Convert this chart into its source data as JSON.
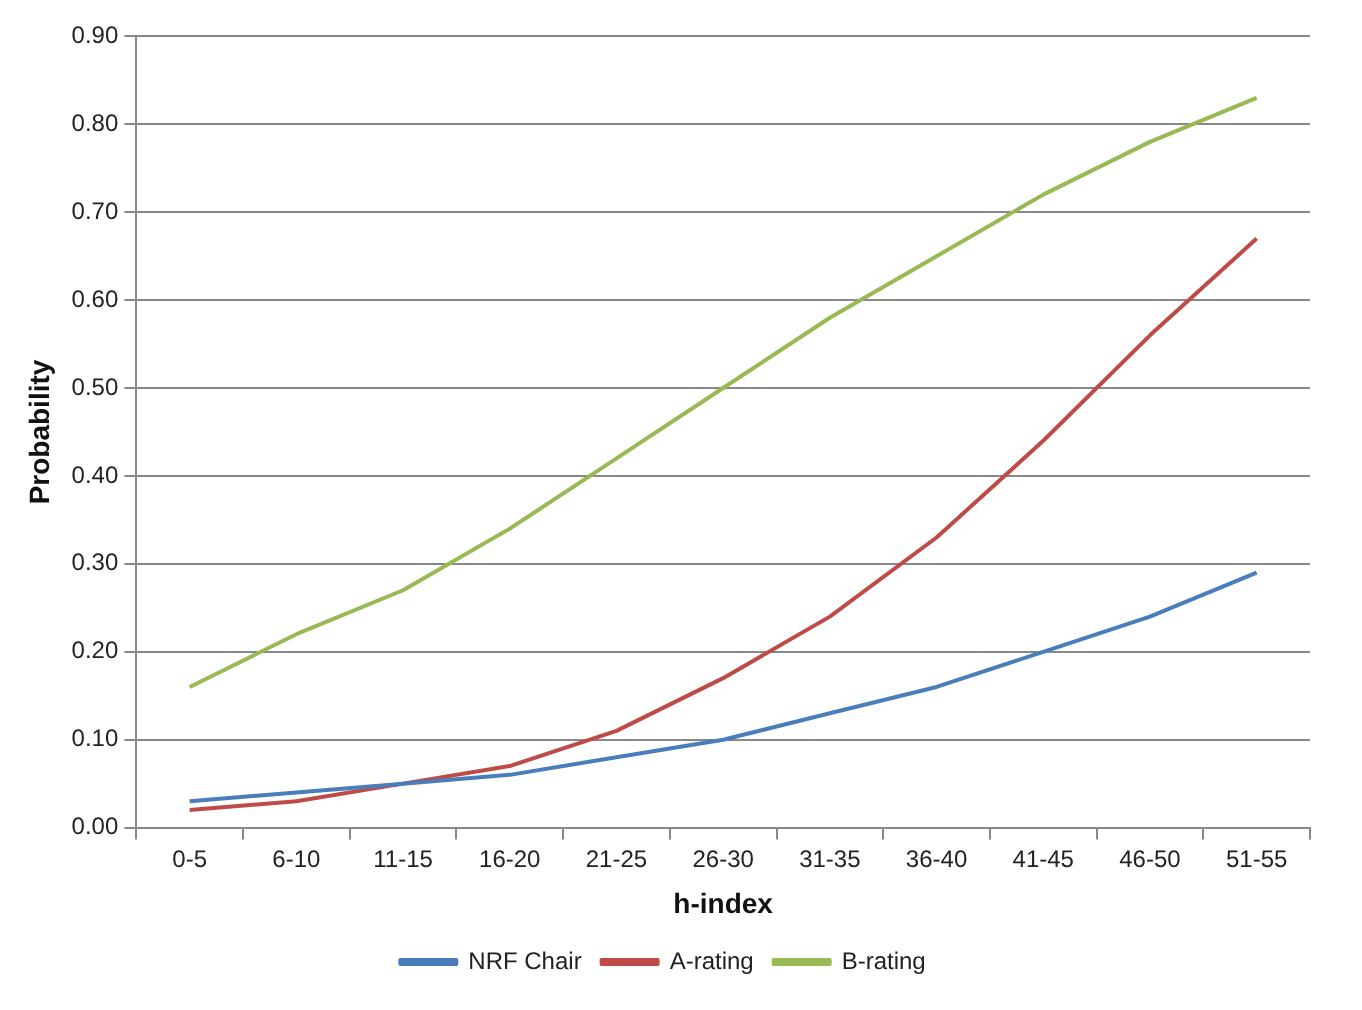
{
  "chart_data": {
    "type": "line",
    "xlabel": "h-index",
    "ylabel": "Probability",
    "categories": [
      "0-5",
      "6-10",
      "11-15",
      "16-20",
      "21-25",
      "26-30",
      "31-35",
      "36-40",
      "41-45",
      "46-50",
      "51-55"
    ],
    "series": [
      {
        "name": "NRF Chair",
        "color": "#4a7ebb",
        "values": [
          0.03,
          0.04,
          0.05,
          0.06,
          0.08,
          0.1,
          0.13,
          0.16,
          0.2,
          0.24,
          0.29
        ]
      },
      {
        "name": "A-rating",
        "color": "#be4b48",
        "values": [
          0.02,
          0.03,
          0.05,
          0.07,
          0.11,
          0.17,
          0.24,
          0.33,
          0.44,
          0.56,
          0.67
        ]
      },
      {
        "name": "B-rating",
        "color": "#98b954",
        "values": [
          0.16,
          0.22,
          0.27,
          0.34,
          0.42,
          0.5,
          0.58,
          0.65,
          0.72,
          0.78,
          0.83
        ]
      }
    ],
    "ylim": [
      0,
      0.9
    ],
    "yticks": [
      {
        "value": 0,
        "label": "0.00"
      },
      {
        "value": 0.1,
        "label": "0.10"
      },
      {
        "value": 0.2,
        "label": "0.20"
      },
      {
        "value": 0.3,
        "label": "0.30"
      },
      {
        "value": 0.4,
        "label": "0.40"
      },
      {
        "value": 0.5,
        "label": "0.50"
      },
      {
        "value": 0.6,
        "label": "0.60"
      },
      {
        "value": 0.7,
        "label": "0.70"
      },
      {
        "value": 0.8,
        "label": "0.80"
      },
      {
        "value": 0.9,
        "label": "0.90"
      }
    ],
    "grid": "y",
    "legend": "bottom",
    "marker": "none",
    "line_style": "solid"
  }
}
